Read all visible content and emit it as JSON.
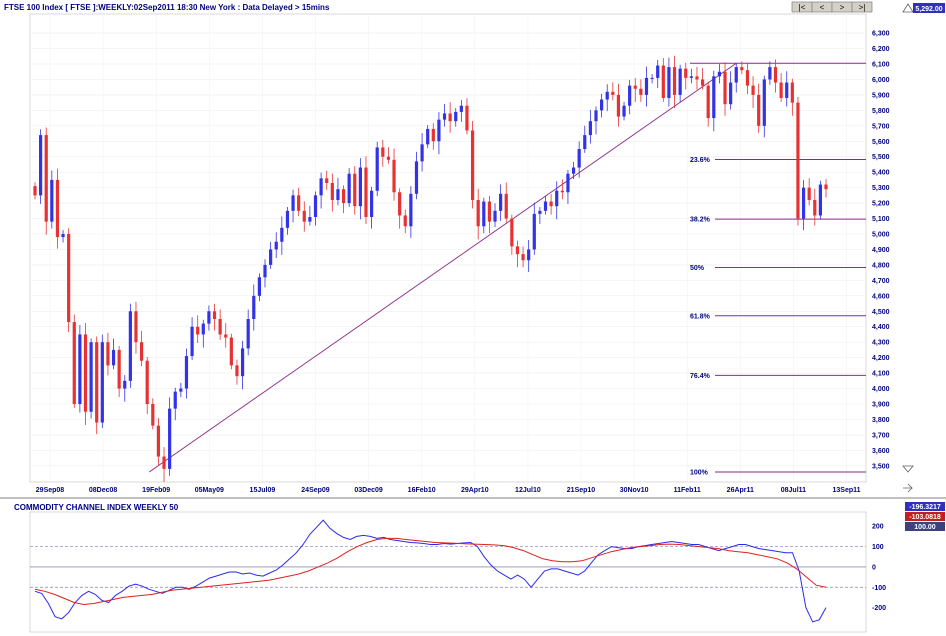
{
  "title": "FTSE 100 Index [ FTSE ]:WEEKLY:02Sep2011 18:30 New York : Data Delayed > 15mins",
  "price_badge": "5,292.00",
  "nav_buttons": [
    "|<",
    "<",
    ">",
    ">|"
  ],
  "cci_title": "COMMODITY CHANNEL INDEX WEEKLY 50",
  "cci_badges": [
    "-196.3217",
    "-103.0818",
    "100.00"
  ],
  "colors": {
    "up": "#3232e6",
    "down": "#e63232",
    "fib": "#8b2a8b",
    "cci": "#2a2aee",
    "cci_ma": "#e02020"
  },
  "chart_data": [
    {
      "type": "candlestick",
      "title": "FTSE 100 Index [ FTSE ]:WEEKLY:02Sep2011 18:30 New York : Data Delayed > 15mins",
      "x_tick_labels": [
        "29Sep08",
        "08Dec08",
        "19Feb09",
        "05May09",
        "15Jul09",
        "24Sep09",
        "03Dec09",
        "16Feb10",
        "29Apr10",
        "12Jul10",
        "21Sep10",
        "30Nov10",
        "11Feb11",
        "26Apr11",
        "08Jul11",
        "13Sep11"
      ],
      "y_ticks": [
        3500,
        3600,
        3700,
        3800,
        3900,
        4000,
        4100,
        4200,
        4300,
        4400,
        4500,
        4600,
        4700,
        4800,
        4900,
        5000,
        5100,
        5200,
        5300,
        5400,
        5500,
        5600,
        5700,
        5800,
        5900,
        6000,
        6100,
        6200,
        6300
      ],
      "y_tick_labels": [
        "3,500",
        "3,600",
        "3,700",
        "3,800",
        "3,900",
        "4,000",
        "4,100",
        "4,200",
        "4,300",
        "4,400",
        "4,500",
        "4,600",
        "4,700",
        "4,800",
        "4,900",
        "5,000",
        "5,100",
        "5,200",
        "5,300",
        "5,400",
        "5,500",
        "5,600",
        "5,700",
        "5,800",
        "5,900",
        "6,000",
        "6,100",
        "6,200",
        "6,300"
      ],
      "ylim": [
        3450,
        6350
      ],
      "last_price": 5292.0,
      "trendline": {
        "from": {
          "week": 20,
          "price": 3460
        },
        "to": {
          "week": 125,
          "price": 6105
        }
      },
      "fib_levels": [
        {
          "label": "23.6%",
          "price": 5482
        },
        {
          "label": "38.2%",
          "price": 5096
        },
        {
          "label": "50%",
          "price": 4783
        },
        {
          "label": "61.8%",
          "price": 4471
        },
        {
          "label": "76.4%",
          "price": 4085
        },
        {
          "label": "100%",
          "price": 3460
        }
      ],
      "fib_top": 6105,
      "candle_closes": [
        5250,
        5640,
        5080,
        5350,
        4980,
        5000,
        4430,
        3900,
        4350,
        3850,
        4300,
        3780,
        4300,
        4150,
        4250,
        4000,
        4050,
        4500,
        4300,
        4180,
        3900,
        3760,
        3560,
        3480,
        3870,
        3980,
        4000,
        4210,
        4400,
        4350,
        4420,
        4500,
        4450,
        4350,
        4330,
        4150,
        4080,
        4260,
        4450,
        4600,
        4720,
        4800,
        4900,
        4950,
        5040,
        5150,
        5250,
        5150,
        5080,
        5110,
        5250,
        5360,
        5330,
        5220,
        5290,
        5200,
        5390,
        5180,
        5430,
        5110,
        5280,
        5560,
        5500,
        5480,
        5270,
        5120,
        5050,
        5260,
        5470,
        5580,
        5680,
        5600,
        5740,
        5780,
        5730,
        5790,
        5830,
        5670,
        5220,
        5050,
        5210,
        5080,
        5150,
        5260,
        5100,
        4920,
        4870,
        4830,
        4900,
        5130,
        5150,
        5210,
        5180,
        5280,
        5270,
        5390,
        5430,
        5550,
        5640,
        5730,
        5800,
        5870,
        5920,
        5900,
        5760,
        5830,
        5960,
        5940,
        5900,
        6010,
        6010,
        6090,
        5880,
        6080,
        5900,
        6070,
        6010,
        6020,
        6000,
        5960,
        5750,
        6020,
        6050,
        5840,
        5980,
        6080,
        6060,
        5960,
        5900,
        5700,
        6000,
        6080,
        5980,
        5880,
        5980,
        5850,
        5100,
        5300,
        5220,
        5120,
        5320,
        5290
      ]
    },
    {
      "type": "line",
      "title": "COMMODITY CHANNEL INDEX WEEKLY 50",
      "y_ticks": [
        -200,
        -100,
        0,
        100,
        200
      ],
      "y_tick_labels": [
        "-200",
        "-100",
        "0",
        "100",
        "200"
      ],
      "ylim": [
        -320,
        270
      ],
      "reference_lines": [
        100,
        0,
        -100
      ],
      "series": [
        {
          "name": "",
          "values": [
            -120,
            -130,
            -180,
            -245,
            -255,
            -225,
            -175,
            -140,
            -120,
            -135,
            -165,
            -175,
            -140,
            -120,
            -95,
            -85,
            -95,
            -110,
            -120,
            -130,
            -115,
            -100,
            -100,
            -110,
            -95,
            -75,
            -55,
            -45,
            -35,
            -25,
            -25,
            -35,
            -30,
            -40,
            -45,
            -30,
            -15,
            10,
            40,
            70,
            110,
            160,
            195,
            230,
            190,
            165,
            145,
            135,
            150,
            155,
            150,
            140,
            145,
            135,
            130,
            125,
            120,
            118,
            115,
            110,
            110,
            115,
            112,
            115,
            118,
            120,
            100,
            50,
            10,
            -20,
            -40,
            -60,
            -40,
            -60,
            -100,
            -60,
            -20,
            -10,
            -10,
            -20,
            -30,
            -40,
            -20,
            20,
            60,
            80,
            100,
            95,
            90,
            90,
            100,
            105,
            110,
            115,
            120,
            125,
            120,
            115,
            110,
            110,
            100,
            90,
            80,
            90,
            100,
            110,
            110,
            100,
            90,
            85,
            80,
            75,
            70,
            70,
            -20,
            -200,
            -270,
            -260,
            -200
          ]
        },
        {
          "name": "",
          "values": [
            -110,
            -120,
            -135,
            -155,
            -175,
            -185,
            -180,
            -170,
            -160,
            -150,
            -145,
            -140,
            -135,
            -125,
            -115,
            -110,
            -105,
            -100,
            -95,
            -90,
            -85,
            -80,
            -75,
            -70,
            -65,
            -55,
            -45,
            -35,
            -20,
            0,
            20,
            45,
            75,
            100,
            120,
            135,
            140,
            140,
            135,
            130,
            125,
            120,
            118,
            116,
            114,
            112,
            110,
            108,
            105,
            95,
            80,
            60,
            40,
            30,
            25,
            25,
            30,
            45,
            60,
            75,
            85,
            95,
            100,
            105,
            110,
            112,
            110,
            105,
            100,
            95,
            90,
            80,
            75,
            70,
            60,
            50,
            40,
            20,
            -10,
            -50,
            -90,
            -100
          ]
        }
      ]
    }
  ]
}
